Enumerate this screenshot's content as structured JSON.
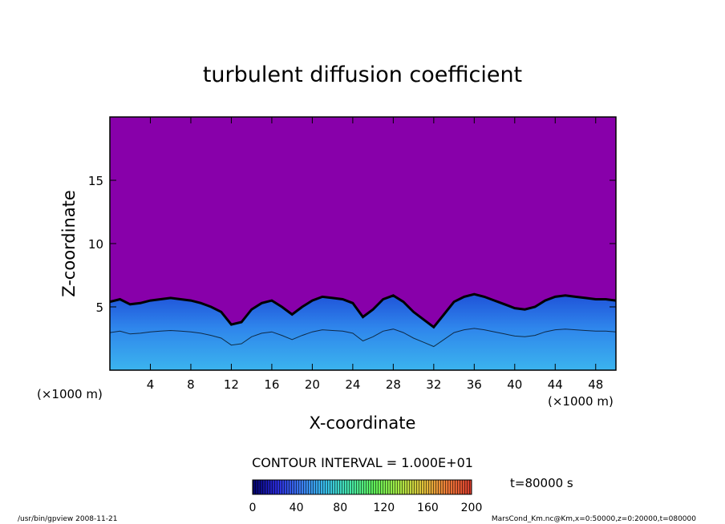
{
  "chart_data": {
    "type": "heatmap",
    "title": "turbulent diffusion coefficient",
    "xlabel": "X-coordinate",
    "ylabel": "Z-coordinate",
    "x_unit_left": "(×1000 m)",
    "x_unit_right": "(×1000 m)",
    "xlim": [
      0,
      50
    ],
    "ylim": [
      0,
      20
    ],
    "x_ticks": [
      4,
      8,
      12,
      16,
      20,
      24,
      28,
      32,
      36,
      40,
      44,
      48
    ],
    "y_ticks": [
      5,
      10,
      15
    ],
    "background_color": "#8800aa",
    "mixed_layer_top_profile": {
      "x": [
        0,
        1,
        2,
        3,
        4,
        5,
        6,
        7,
        8,
        9,
        10,
        11,
        12,
        13,
        14,
        15,
        16,
        17,
        18,
        19,
        20,
        21,
        22,
        23,
        24,
        25,
        26,
        27,
        28,
        29,
        30,
        31,
        32,
        33,
        34,
        35,
        36,
        37,
        38,
        39,
        40,
        41,
        42,
        43,
        44,
        45,
        46,
        47,
        48,
        49,
        50
      ],
      "z": [
        5.4,
        5.6,
        5.2,
        5.3,
        5.5,
        5.6,
        5.7,
        5.6,
        5.5,
        5.3,
        5.0,
        4.6,
        3.6,
        3.8,
        4.8,
        5.3,
        5.5,
        5.0,
        4.4,
        5.0,
        5.5,
        5.8,
        5.7,
        5.6,
        5.3,
        4.2,
        4.8,
        5.6,
        5.9,
        5.4,
        4.6,
        4.0,
        3.4,
        4.4,
        5.4,
        5.8,
        6.0,
        5.8,
        5.5,
        5.2,
        4.9,
        4.8,
        5.0,
        5.5,
        5.8,
        5.9,
        5.8,
        5.7,
        5.6,
        5.6,
        5.5
      ]
    },
    "contour_interval_label": "CONTOUR INTERVAL = 1.000E+01",
    "colorbar": {
      "min": 0,
      "max": 200,
      "ticks": [
        0,
        40,
        80,
        120,
        160,
        200
      ],
      "stops": [
        "#000066",
        "#2a2ad8",
        "#3b7cf0",
        "#37bde8",
        "#45e6a8",
        "#5fef58",
        "#a6e844",
        "#e0c23a",
        "#ee7a38",
        "#d63a2c"
      ]
    },
    "time_label": "t=80000 s",
    "footer_left": "/usr/bin/gpview  2008-11-21",
    "footer_right": "MarsCond_Km.nc@Km,x=0:50000,z=0:20000,t=080000"
  }
}
